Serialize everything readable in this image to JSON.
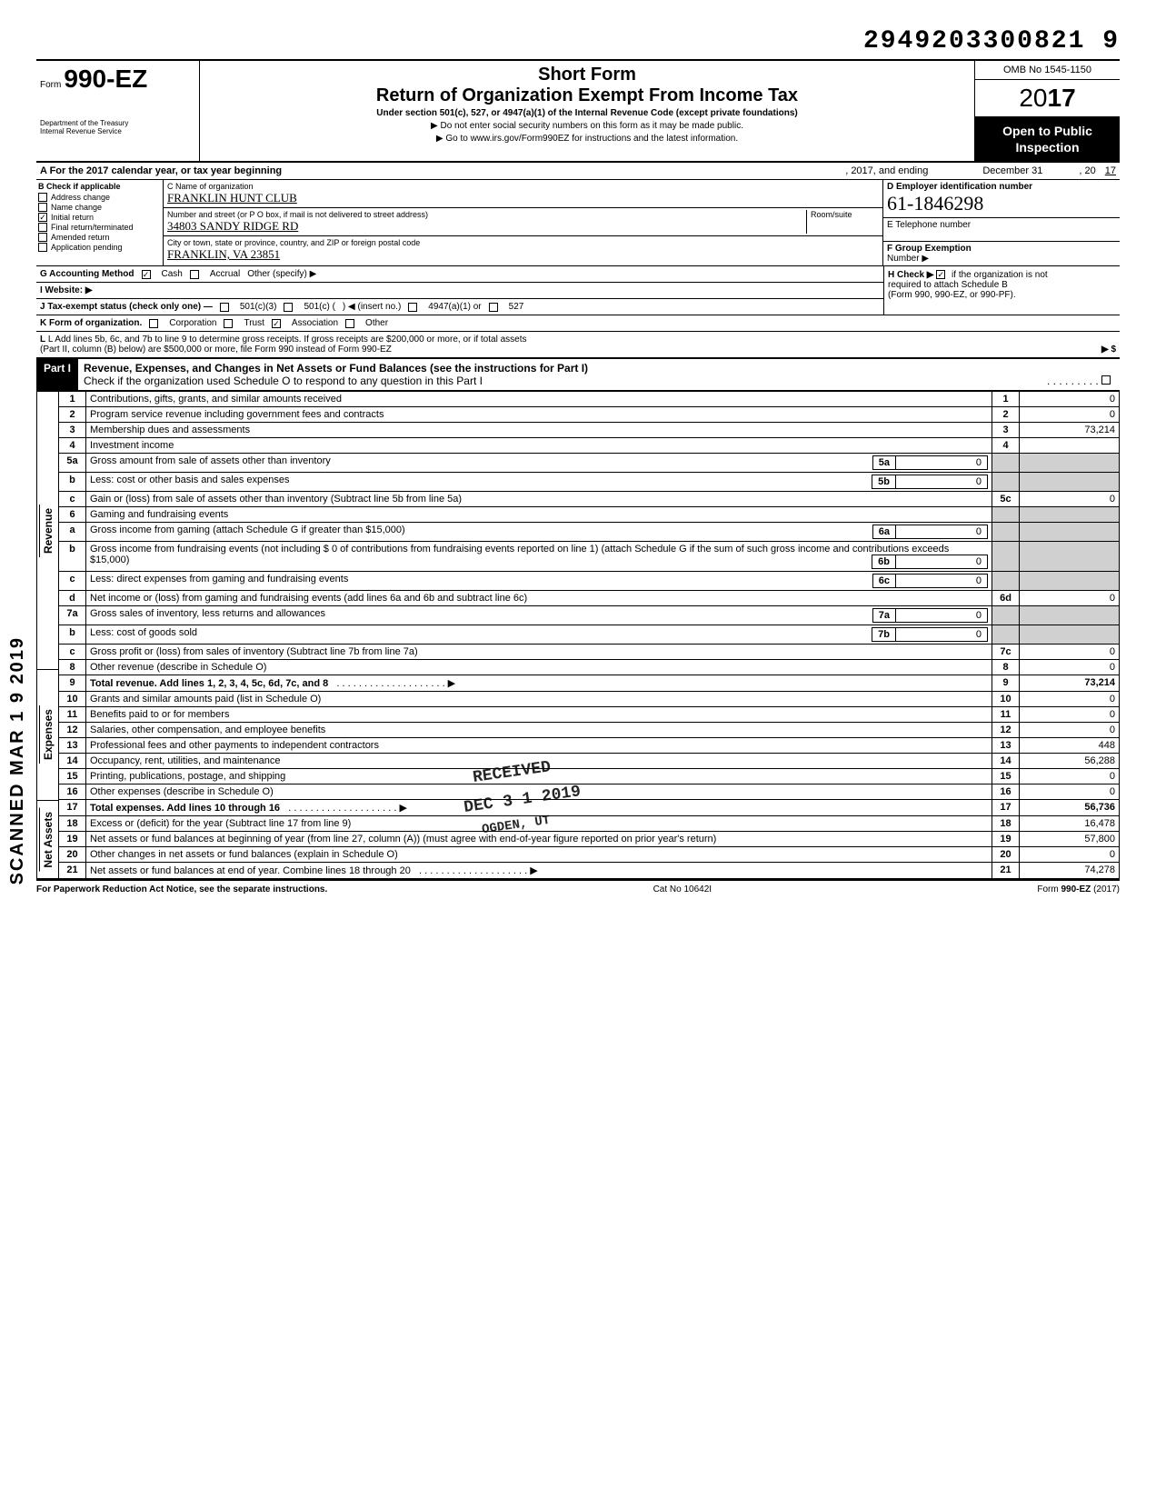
{
  "doc_number": "2949203300821 9",
  "header": {
    "form_prefix": "Form",
    "form_number": "990-EZ",
    "dept1": "Department of the Treasury",
    "dept2": "Internal Revenue Service",
    "short_form": "Short Form",
    "title": "Return of Organization Exempt From Income Tax",
    "subtitle": "Under section 501(c), 527, or 4947(a)(1) of the Internal Revenue Code (except private foundations)",
    "line_ssn": "▶ Do not enter social security numbers on this form as it may be made public.",
    "line_goto": "▶ Go to www.irs.gov/Form990EZ for instructions and the latest information.",
    "omb": "OMB No 1545-1150",
    "year_plain": "20",
    "year_bold": "17",
    "open1": "Open to Public",
    "open2": "Inspection"
  },
  "row_a": {
    "left": "A  For the 2017 calendar year, or tax year beginning",
    "mid": ", 2017, and ending",
    "right_month": "December 31",
    "right_year_prefix": ", 20",
    "right_year": "17"
  },
  "col_b": {
    "header": "B  Check if applicable",
    "items": [
      "Address change",
      "Name change",
      "Initial return",
      "Final return/terminated",
      "Amended return",
      "Application pending"
    ],
    "checked_index": 2
  },
  "col_c": {
    "c_label": "C  Name of organization",
    "org_name": "FRANKLIN HUNT CLUB",
    "addr_label": "Number and street (or P O  box, if mail is not delivered to street address)",
    "room_label": "Room/suite",
    "street": "34803 SANDY RIDGE RD",
    "city_label": "City or town, state or province, country, and ZIP or foreign postal code",
    "city": "FRANKLIN, VA 23851"
  },
  "col_right": {
    "d_label": "D  Employer identification number",
    "ein": "61-1846298",
    "e_label": "E  Telephone number",
    "f_label": "F  Group Exemption",
    "f_label2": "Number ▶"
  },
  "g_row": {
    "g": "G  Accounting Method",
    "cash": "Cash",
    "accrual": "Accrual",
    "other": "Other (specify) ▶",
    "h1": "H  Check ▶",
    "h2": "if the organization is not",
    "h3": "required to attach Schedule B",
    "h4": "(Form 990, 990-EZ, or 990-PF)."
  },
  "i_row": "I   Website: ▶",
  "j_row": {
    "label": "J  Tax-exempt status (check only one) —",
    "o1": "501(c)(3)",
    "o2": "501(c) (",
    "o2b": ") ◀ (insert no.)",
    "o3": "4947(a)(1) or",
    "o4": "527"
  },
  "k_row": {
    "label": "K  Form of organization.",
    "o1": "Corporation",
    "o2": "Trust",
    "o3": "Association",
    "o4": "Other"
  },
  "l_row": "L  Add lines 5b, 6c, and 7b to line 9 to determine gross receipts. If gross receipts are $200,000 or more, or if total assets",
  "l_row2": "(Part II, column (B) below) are $500,000 or more, file Form 990 instead of Form 990-EZ",
  "l_arrow": "▶    $",
  "part1": {
    "label": "Part I",
    "title": "Revenue, Expenses, and Changes in Net Assets or Fund Balances (see the instructions for Part I)",
    "check_line": "Check if the organization used Schedule O to respond to any question in this Part I"
  },
  "side_labels": {
    "rev": "Revenue",
    "exp": "Expenses",
    "na": "Net Assets"
  },
  "lines": [
    {
      "n": "1",
      "d": "Contributions, gifts, grants, and similar amounts received",
      "box": "1",
      "amt": "0"
    },
    {
      "n": "2",
      "d": "Program service revenue including government fees and contracts",
      "box": "2",
      "amt": "0"
    },
    {
      "n": "3",
      "d": "Membership dues and assessments",
      "box": "3",
      "amt": "73,214"
    },
    {
      "n": "4",
      "d": "Investment income",
      "box": "4",
      "amt": ""
    },
    {
      "n": "5a",
      "d": "Gross amount from sale of assets other than inventory",
      "ibox": "5a",
      "ival": "0"
    },
    {
      "n": "b",
      "d": "Less: cost or other basis and sales expenses",
      "ibox": "5b",
      "ival": "0"
    },
    {
      "n": "c",
      "d": "Gain or (loss) from sale of assets other than inventory (Subtract line 5b from line 5a)",
      "box": "5c",
      "amt": "0"
    },
    {
      "n": "6",
      "d": "Gaming and fundraising events",
      "shaded": true
    },
    {
      "n": "a",
      "d": "Gross income from gaming (attach Schedule G if greater than $15,000)",
      "ibox": "6a",
      "ival": "0"
    },
    {
      "n": "b",
      "d": "Gross income from fundraising events (not including  $                    0 of contributions from fundraising events reported on line 1) (attach Schedule G if the sum of such gross income and contributions exceeds $15,000)",
      "ibox": "6b",
      "ival": "0"
    },
    {
      "n": "c",
      "d": "Less: direct expenses from gaming and fundraising events",
      "ibox": "6c",
      "ival": "0"
    },
    {
      "n": "d",
      "d": "Net income or (loss) from gaming and fundraising events (add lines 6a and 6b and subtract line 6c)",
      "box": "6d",
      "amt": "0"
    },
    {
      "n": "7a",
      "d": "Gross sales of inventory, less returns and allowances",
      "ibox": "7a",
      "ival": "0"
    },
    {
      "n": "b",
      "d": "Less: cost of goods sold",
      "ibox": "7b",
      "ival": "0"
    },
    {
      "n": "c",
      "d": "Gross profit or (loss) from sales of inventory (Subtract line 7b from line 7a)",
      "box": "7c",
      "amt": "0"
    },
    {
      "n": "8",
      "d": "Other revenue (describe in Schedule O)",
      "box": "8",
      "amt": "0"
    },
    {
      "n": "9",
      "d": "Total revenue. Add lines 1, 2, 3, 4, 5c, 6d, 7c, and 8",
      "box": "9",
      "amt": "73,214",
      "bold": true,
      "arrow": true
    },
    {
      "n": "10",
      "d": "Grants and similar amounts paid (list in Schedule O)",
      "box": "10",
      "amt": "0"
    },
    {
      "n": "11",
      "d": "Benefits paid to or for members",
      "box": "11",
      "amt": "0"
    },
    {
      "n": "12",
      "d": "Salaries, other compensation, and employee benefits",
      "box": "12",
      "amt": "0"
    },
    {
      "n": "13",
      "d": "Professional fees and other payments to independent contractors",
      "box": "13",
      "amt": "448"
    },
    {
      "n": "14",
      "d": "Occupancy, rent, utilities, and maintenance",
      "box": "14",
      "amt": "56,288"
    },
    {
      "n": "15",
      "d": "Printing, publications, postage, and shipping",
      "box": "15",
      "amt": "0"
    },
    {
      "n": "16",
      "d": "Other expenses (describe in Schedule O)",
      "box": "16",
      "amt": "0"
    },
    {
      "n": "17",
      "d": "Total expenses. Add lines 10 through 16",
      "box": "17",
      "amt": "56,736",
      "bold": true,
      "arrow": true
    },
    {
      "n": "18",
      "d": "Excess or (deficit) for the year (Subtract line 17 from line 9)",
      "box": "18",
      "amt": "16,478"
    },
    {
      "n": "19",
      "d": "Net assets or fund balances at beginning of year (from line 27, column (A)) (must agree with end-of-year figure reported on prior year's return)",
      "box": "19",
      "amt": "57,800"
    },
    {
      "n": "20",
      "d": "Other changes in net assets or fund balances (explain in Schedule O)",
      "box": "20",
      "amt": "0"
    },
    {
      "n": "21",
      "d": "Net assets or fund balances at end of year. Combine lines 18 through 20",
      "box": "21",
      "amt": "74,278",
      "arrow": true
    }
  ],
  "stamps": {
    "received": "RECEIVED",
    "date": "DEC 3 1 2019",
    "ogden": "OGDEN, UT",
    "scanned": "SCANNED MAR 1 9 2019"
  },
  "footer": {
    "left": "For Paperwork Reduction Act Notice, see the separate instructions.",
    "mid": "Cat No 10642I",
    "right": "Form 990-EZ (2017)"
  }
}
